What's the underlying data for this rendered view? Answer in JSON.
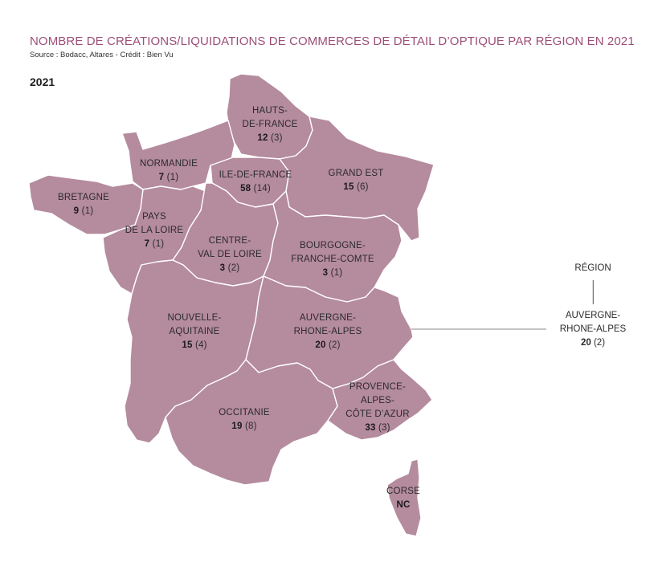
{
  "header": {
    "title": "NOMBRE DE CRÉATIONS/LIQUIDATIONS DE COMMERCES DE DÉTAIL D’OPTIQUE PAR RÉGION EN 2021",
    "source": "Source : Bodacc, Altares - Crédit : Bien Vu",
    "year": "2021"
  },
  "colors": {
    "region_fill": "#b58b9e",
    "border": "#ffffff",
    "title": "#9c4e78"
  },
  "regions": [
    {
      "id": "hauts-de-france",
      "name_l1": "HAUTS-",
      "name_l2": "DE-FRANCE",
      "creations": "12",
      "liquidations": "(3)"
    },
    {
      "id": "normandie",
      "name_l1": "NORMANDIE",
      "creations": "7",
      "liquidations": "(1)"
    },
    {
      "id": "ile-de-france",
      "name_l1": "ILE-DE-FRANCE",
      "creations": "58",
      "liquidations": "(14)"
    },
    {
      "id": "grand-est",
      "name_l1": "GRAND EST",
      "creations": "15",
      "liquidations": "(6)"
    },
    {
      "id": "bretagne",
      "name_l1": "BRETAGNE",
      "creations": "9",
      "liquidations": "(1)"
    },
    {
      "id": "pays-de-la-loire",
      "name_l1": "PAYS",
      "name_l2": "DE LA LOIRE",
      "creations": "7",
      "liquidations": "(1)"
    },
    {
      "id": "centre-val-de-loire",
      "name_l1": "CENTRE-",
      "name_l2": "VAL DE LOIRE",
      "creations": "3",
      "liquidations": "(2)"
    },
    {
      "id": "bourgogne-franche-comte",
      "name_l1": "BOURGOGNE-",
      "name_l2": "FRANCHE-COMTE",
      "creations": "3",
      "liquidations": "(1)"
    },
    {
      "id": "nouvelle-aquitaine",
      "name_l1": "NOUVELLE-",
      "name_l2": "AQUITAINE",
      "creations": "15",
      "liquidations": "(4)"
    },
    {
      "id": "auvergne-rhone-alpes",
      "name_l1": "AUVERGNE-",
      "name_l2": "RHONE-ALPES",
      "creations": "20",
      "liquidations": "(2)"
    },
    {
      "id": "occitanie",
      "name_l1": "OCCITANIE",
      "creations": "19",
      "liquidations": "(8)"
    },
    {
      "id": "paca",
      "name_l1": "PROVENCE-",
      "name_l2": "ALPES-",
      "name_l3": "CÔTE D’AZUR",
      "creations": "33",
      "liquidations": "(3)"
    },
    {
      "id": "corse",
      "name_l1": "CORSE",
      "creations": "NC",
      "liquidations": ""
    }
  ],
  "legend": {
    "label": "RÉGION",
    "example_l1": "AUVERGNE-",
    "example_l2": "RHONE-ALPES",
    "example_creations": "20",
    "example_liquidations": "(2)"
  }
}
